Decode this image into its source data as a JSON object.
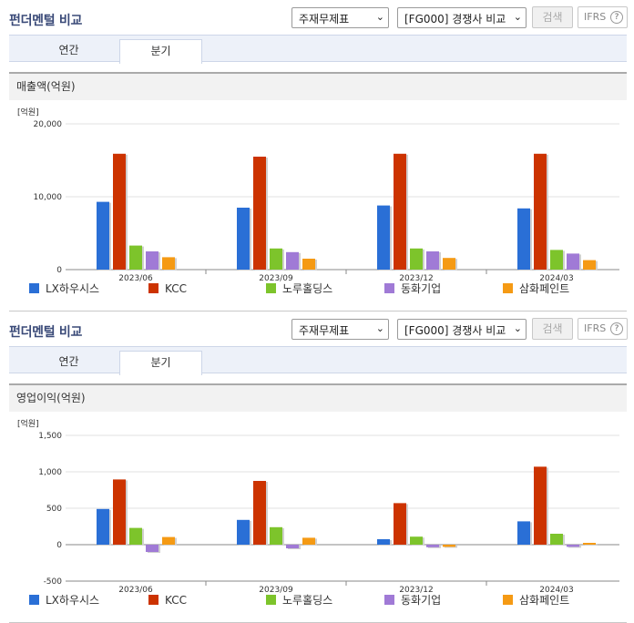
{
  "panels": [
    {
      "title": "펀더멘털 비교",
      "select1": "주재무제표",
      "select2": "[FG000] 경쟁사 비교",
      "search_label": "검색",
      "ifrs_label": "IFRS",
      "tabs": [
        "연간",
        "분기"
      ],
      "active_tab": "분기",
      "section_title": "매출액(억원)"
    },
    {
      "title": "펀더멘털 비교",
      "select1": "주재무제표",
      "select2": "[FG000] 경쟁사 비교",
      "search_label": "검색",
      "ifrs_label": "IFRS",
      "tabs": [
        "연간",
        "분기"
      ],
      "active_tab": "분기",
      "section_title": "영업이익(억원)"
    }
  ],
  "colors": {
    "LX하우시스": "#2a6fd6",
    "KCC": "#cc3300",
    "노루홀딩스": "#7dc42b",
    "동화기업": "#a07ad6",
    "삼화페인트": "#f59a14"
  },
  "chart_data": [
    {
      "type": "bar",
      "unit_label": "[억원]",
      "categories": [
        "2023/06",
        "2023/09",
        "2023/12",
        "2024/03"
      ],
      "ylim": [
        0,
        20000
      ],
      "yticks": [
        0,
        10000,
        20000
      ],
      "ytick_labels": [
        "0",
        "10,000",
        "20,000"
      ],
      "grid": true,
      "legend": "bottom",
      "series": [
        {
          "name": "LX하우시스",
          "values": [
            9300,
            8500,
            8800,
            8400
          ]
        },
        {
          "name": "KCC",
          "values": [
            15900,
            15500,
            15900,
            15900
          ]
        },
        {
          "name": "노루홀딩스",
          "values": [
            3300,
            2900,
            2900,
            2700
          ]
        },
        {
          "name": "동화기업",
          "values": [
            2500,
            2400,
            2500,
            2200
          ]
        },
        {
          "name": "삼화페인트",
          "values": [
            1700,
            1500,
            1600,
            1300
          ]
        }
      ]
    },
    {
      "type": "bar",
      "unit_label": "[억원]",
      "categories": [
        "2023/06",
        "2023/09",
        "2023/12",
        "2024/03"
      ],
      "ylim": [
        -500,
        1500
      ],
      "yticks": [
        -500,
        0,
        500,
        1000,
        1500
      ],
      "ytick_labels": [
        "-500",
        "0",
        "500",
        "1,000",
        "1,500"
      ],
      "grid": true,
      "legend": "bottom",
      "series": [
        {
          "name": "LX하우시스",
          "values": [
            490,
            340,
            75,
            320
          ]
        },
        {
          "name": "KCC",
          "values": [
            895,
            875,
            570,
            1070
          ]
        },
        {
          "name": "노루홀딩스",
          "values": [
            230,
            240,
            110,
            150
          ]
        },
        {
          "name": "동화기업",
          "values": [
            -100,
            -50,
            -35,
            -30
          ]
        },
        {
          "name": "삼화페인트",
          "values": [
            105,
            95,
            -30,
            25
          ]
        }
      ]
    }
  ]
}
